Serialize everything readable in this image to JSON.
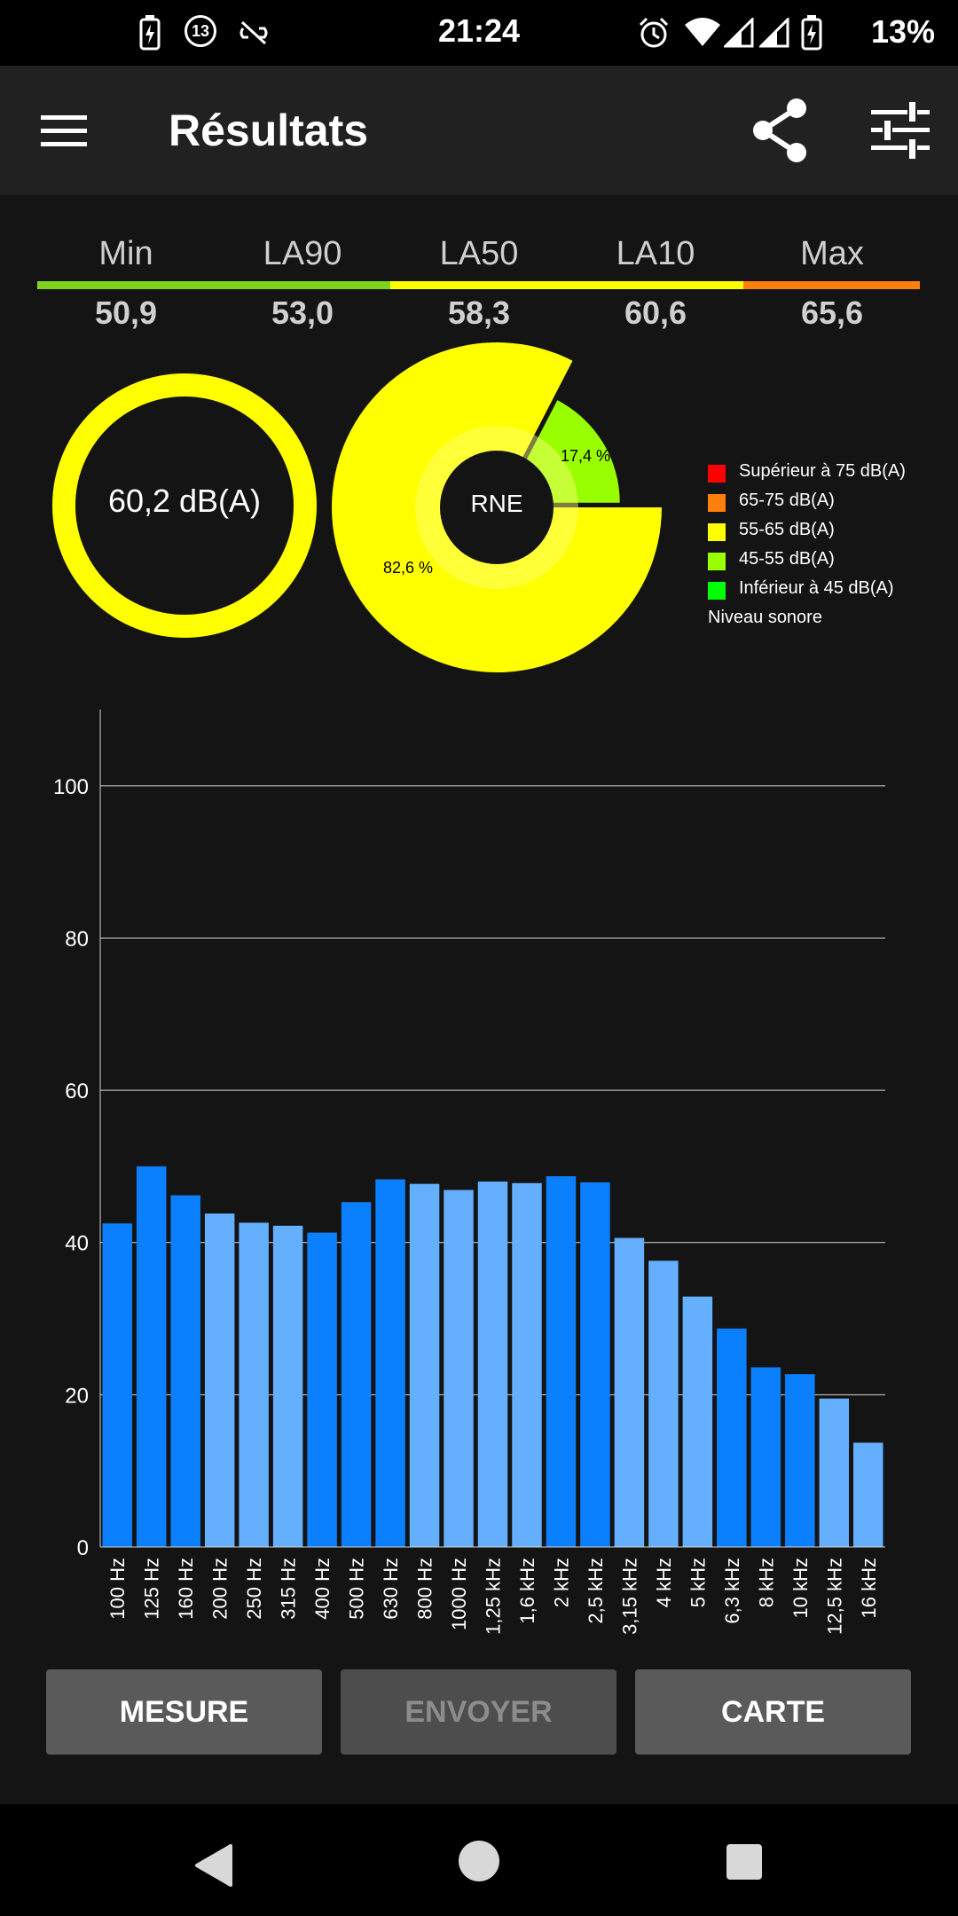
{
  "status_bar": {
    "time": "21:24",
    "battery_percent": "13%",
    "notification_count": "13",
    "icons_left": [
      "battery-charging-icon",
      "notification-count-icon",
      "link-off-icon"
    ],
    "icons_right": [
      "alarm-icon",
      "wifi-icon",
      "signal-icon",
      "signal-icon",
      "battery-charging-icon"
    ]
  },
  "app_bar": {
    "title": "Résultats",
    "icons": [
      "menu-icon",
      "share-icon",
      "settings-sliders-icon"
    ]
  },
  "stats": [
    {
      "label": "Min",
      "value": "50,9"
    },
    {
      "label": "LA90",
      "value": "53,0"
    },
    {
      "label": "LA50",
      "value": "58,3"
    },
    {
      "label": "LA10",
      "value": "60,6"
    },
    {
      "label": "Max",
      "value": "65,6"
    }
  ],
  "level_bar_colors": [
    "#7ed321",
    "#ffff00",
    "#ff7f0e"
  ],
  "gauge": {
    "text": "60,2 dB(A)",
    "color": "#ffff00"
  },
  "pie": {
    "center_label": "RNE",
    "slices": [
      {
        "label": "82,6 %",
        "fraction": 0.826,
        "color": "#ffff00"
      },
      {
        "label": "17,4 %",
        "fraction": 0.174,
        "color": "#99ff00"
      }
    ]
  },
  "legend": {
    "items": [
      {
        "label": "Supérieur à 75 dB(A)",
        "color": "#ff0000"
      },
      {
        "label": "65-75 dB(A)",
        "color": "#ff7f0e"
      },
      {
        "label": "55-65 dB(A)",
        "color": "#ffff00"
      },
      {
        "label": "45-55 dB(A)",
        "color": "#99ff00"
      },
      {
        "label": "Inférieur à 45 dB(A)",
        "color": "#00ff00"
      }
    ],
    "footer": "Niveau sonore"
  },
  "chart_data": {
    "type": "bar",
    "categories": [
      "100 Hz",
      "125 Hz",
      "160 Hz",
      "200 Hz",
      "250 Hz",
      "315 Hz",
      "400 Hz",
      "500 Hz",
      "630 Hz",
      "800 Hz",
      "1000 Hz",
      "1,25 kHz",
      "1,6 kHz",
      "2 kHz",
      "2,5 kHz",
      "3,15 kHz",
      "4 kHz",
      "5 kHz",
      "6,3 kHz",
      "8 kHz",
      "10 kHz",
      "12,5 kHz",
      "16 kHz"
    ],
    "values": [
      42.5,
      50,
      46.2,
      43.8,
      42.6,
      42.2,
      41.3,
      45.3,
      48.3,
      47.7,
      46.9,
      48,
      47.8,
      48.7,
      47.9,
      40.6,
      37.6,
      32.9,
      28.7,
      23.6,
      22.7,
      19.5,
      13.7
    ],
    "highlight": [
      true,
      true,
      true,
      false,
      false,
      false,
      true,
      true,
      true,
      false,
      false,
      false,
      false,
      true,
      true,
      false,
      false,
      false,
      true,
      true,
      true,
      false,
      false
    ],
    "colors": {
      "highlight": "#0a80ff",
      "normal": "#64b0ff"
    },
    "ylim": [
      0,
      110
    ],
    "yticks": [
      0,
      20,
      40,
      60,
      80,
      100
    ],
    "grid": true,
    "xlabel": "",
    "ylabel": ""
  },
  "buttons": {
    "measure": "MESURE",
    "send": "ENVOYER",
    "map": "CARTE"
  },
  "nav_bar": {
    "icons": [
      "back-icon",
      "home-icon",
      "recents-icon"
    ]
  }
}
